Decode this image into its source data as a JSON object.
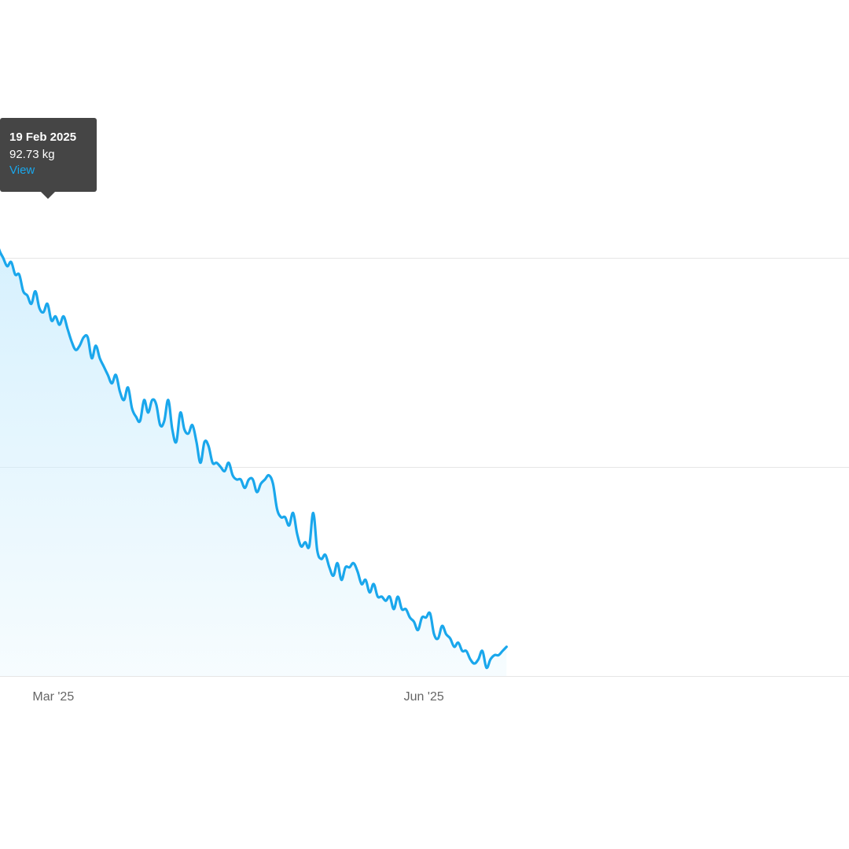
{
  "chart_data": {
    "type": "area",
    "x_ticks": [
      "Mar '25",
      "Jun '25"
    ],
    "x_tick_dates": [
      "2025-03-01",
      "2025-06-01"
    ],
    "xlim": [
      "2025-02-14",
      "2025-09-21"
    ],
    "ylim": [
      80,
      95
    ],
    "y_gridlines": [
      80,
      85,
      90
    ],
    "grid": true,
    "legend": "none",
    "line_color": "#1aa7ec",
    "fill_color": "#d7f1fd",
    "series": [
      {
        "points": [
          [
            "2025-02-19",
            92.73
          ],
          [
            "2025-02-20",
            90.6
          ],
          [
            "2025-02-21",
            90.2
          ],
          [
            "2025-02-22",
            90.0
          ],
          [
            "2025-02-23",
            89.8
          ],
          [
            "2025-02-24",
            89.9
          ],
          [
            "2025-02-25",
            89.6
          ],
          [
            "2025-02-26",
            89.6
          ],
          [
            "2025-02-27",
            89.2
          ],
          [
            "2025-02-28",
            89.1
          ],
          [
            "2025-03-01",
            88.9
          ],
          [
            "2025-03-02",
            89.2
          ],
          [
            "2025-03-03",
            88.8
          ],
          [
            "2025-03-04",
            88.7
          ],
          [
            "2025-03-05",
            88.9
          ],
          [
            "2025-03-06",
            88.5
          ],
          [
            "2025-03-07",
            88.6
          ],
          [
            "2025-03-08",
            88.4
          ],
          [
            "2025-03-09",
            88.6
          ],
          [
            "2025-03-10",
            88.3
          ],
          [
            "2025-03-11",
            88.0
          ],
          [
            "2025-03-12",
            87.8
          ],
          [
            "2025-03-13",
            87.9
          ],
          [
            "2025-03-14",
            88.1
          ],
          [
            "2025-03-15",
            88.1
          ],
          [
            "2025-03-16",
            87.6
          ],
          [
            "2025-03-17",
            87.9
          ],
          [
            "2025-03-18",
            87.6
          ],
          [
            "2025-03-19",
            87.4
          ],
          [
            "2025-03-20",
            87.2
          ],
          [
            "2025-03-21",
            87.0
          ],
          [
            "2025-03-22",
            87.2
          ],
          [
            "2025-03-23",
            86.8
          ],
          [
            "2025-03-24",
            86.6
          ],
          [
            "2025-03-25",
            86.9
          ],
          [
            "2025-03-26",
            86.4
          ],
          [
            "2025-03-27",
            86.2
          ],
          [
            "2025-03-28",
            86.1
          ],
          [
            "2025-03-29",
            86.6
          ],
          [
            "2025-03-30",
            86.3
          ],
          [
            "2025-03-31",
            86.6
          ],
          [
            "2025-04-01",
            86.5
          ],
          [
            "2025-04-02",
            86.0
          ],
          [
            "2025-04-03",
            86.1
          ],
          [
            "2025-04-04",
            86.6
          ],
          [
            "2025-04-05",
            85.9
          ],
          [
            "2025-04-06",
            85.6
          ],
          [
            "2025-04-07",
            86.3
          ],
          [
            "2025-04-08",
            85.9
          ],
          [
            "2025-04-09",
            85.8
          ],
          [
            "2025-04-10",
            86.0
          ],
          [
            "2025-04-11",
            85.6
          ],
          [
            "2025-04-12",
            85.1
          ],
          [
            "2025-04-13",
            85.6
          ],
          [
            "2025-04-14",
            85.5
          ],
          [
            "2025-04-15",
            85.1
          ],
          [
            "2025-04-16",
            85.1
          ],
          [
            "2025-04-17",
            85.0
          ],
          [
            "2025-04-18",
            84.9
          ],
          [
            "2025-04-19",
            85.1
          ],
          [
            "2025-04-20",
            84.8
          ],
          [
            "2025-04-21",
            84.7
          ],
          [
            "2025-04-22",
            84.7
          ],
          [
            "2025-04-23",
            84.5
          ],
          [
            "2025-04-24",
            84.7
          ],
          [
            "2025-04-25",
            84.7
          ],
          [
            "2025-04-26",
            84.4
          ],
          [
            "2025-04-27",
            84.6
          ],
          [
            "2025-04-28",
            84.7
          ],
          [
            "2025-04-29",
            84.8
          ],
          [
            "2025-04-30",
            84.6
          ],
          [
            "2025-05-01",
            84.0
          ],
          [
            "2025-05-02",
            83.8
          ],
          [
            "2025-05-03",
            83.8
          ],
          [
            "2025-05-04",
            83.6
          ],
          [
            "2025-05-05",
            83.9
          ],
          [
            "2025-05-06",
            83.4
          ],
          [
            "2025-05-07",
            83.1
          ],
          [
            "2025-05-08",
            83.2
          ],
          [
            "2025-05-09",
            83.1
          ],
          [
            "2025-05-10",
            83.9
          ],
          [
            "2025-05-11",
            83.0
          ],
          [
            "2025-05-12",
            82.8
          ],
          [
            "2025-05-13",
            82.9
          ],
          [
            "2025-05-14",
            82.6
          ],
          [
            "2025-05-15",
            82.4
          ],
          [
            "2025-05-16",
            82.7
          ],
          [
            "2025-05-17",
            82.3
          ],
          [
            "2025-05-18",
            82.6
          ],
          [
            "2025-05-19",
            82.6
          ],
          [
            "2025-05-20",
            82.7
          ],
          [
            "2025-05-21",
            82.5
          ],
          [
            "2025-05-22",
            82.2
          ],
          [
            "2025-05-23",
            82.3
          ],
          [
            "2025-05-24",
            82.0
          ],
          [
            "2025-05-25",
            82.2
          ],
          [
            "2025-05-26",
            81.9
          ],
          [
            "2025-05-27",
            81.9
          ],
          [
            "2025-05-28",
            81.8
          ],
          [
            "2025-05-29",
            81.9
          ],
          [
            "2025-05-30",
            81.6
          ],
          [
            "2025-05-31",
            81.9
          ],
          [
            "2025-06-01",
            81.6
          ],
          [
            "2025-06-02",
            81.6
          ],
          [
            "2025-06-03",
            81.4
          ],
          [
            "2025-06-04",
            81.3
          ],
          [
            "2025-06-05",
            81.1
          ],
          [
            "2025-06-06",
            81.4
          ],
          [
            "2025-06-07",
            81.4
          ],
          [
            "2025-06-08",
            81.5
          ],
          [
            "2025-06-09",
            81.0
          ],
          [
            "2025-06-10",
            80.9
          ],
          [
            "2025-06-11",
            81.2
          ],
          [
            "2025-06-12",
            81.0
          ],
          [
            "2025-06-13",
            80.9
          ],
          [
            "2025-06-14",
            80.7
          ],
          [
            "2025-06-15",
            80.8
          ],
          [
            "2025-06-16",
            80.6
          ],
          [
            "2025-06-17",
            80.6
          ],
          [
            "2025-06-18",
            80.4
          ],
          [
            "2025-06-19",
            80.3
          ],
          [
            "2025-06-20",
            80.4
          ],
          [
            "2025-06-21",
            80.6
          ],
          [
            "2025-06-22",
            80.2
          ],
          [
            "2025-06-23",
            80.4
          ],
          [
            "2025-06-24",
            80.5
          ],
          [
            "2025-06-25",
            80.5
          ],
          [
            "2025-06-26",
            80.6
          ],
          [
            "2025-06-27",
            80.7
          ]
        ]
      }
    ],
    "tooltip": {
      "date": "19 Feb 2025",
      "value": "92.73 kg",
      "link": "View",
      "link_color": "#1aa7ec"
    }
  }
}
